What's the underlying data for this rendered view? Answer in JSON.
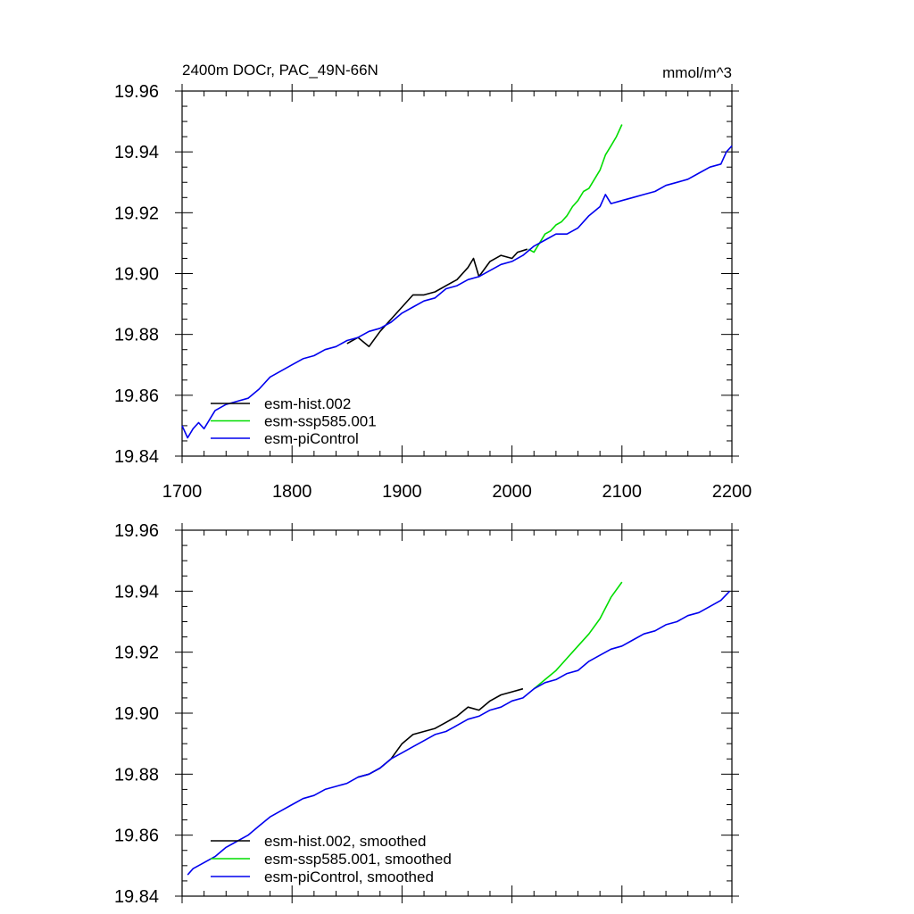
{
  "figure": {
    "title_left": "2400m DOCr, PAC_49N-66N",
    "title_right": "mmol/m^3"
  },
  "chart_data": [
    {
      "type": "line",
      "panel": "top",
      "xlim": [
        1700,
        2200
      ],
      "ylim": [
        19.84,
        19.96
      ],
      "xticks": [
        "1700",
        "1800",
        "1900",
        "2000",
        "2100",
        "2200"
      ],
      "yticks": [
        "19.84",
        "19.86",
        "19.88",
        "19.90",
        "19.92",
        "19.94",
        "19.96"
      ],
      "legend_position": "bottom-left",
      "series": [
        {
          "name": "esm-hist.002",
          "color": "#000000",
          "x": [
            1850,
            1860,
            1870,
            1880,
            1890,
            1900,
            1910,
            1920,
            1930,
            1940,
            1950,
            1960,
            1965,
            1970,
            1980,
            1990,
            2000,
            2005,
            2014
          ],
          "y": [
            19.877,
            19.879,
            19.876,
            19.881,
            19.885,
            19.889,
            19.893,
            19.893,
            19.894,
            19.896,
            19.898,
            19.902,
            19.905,
            19.899,
            19.904,
            19.906,
            19.905,
            19.907,
            19.908
          ]
        },
        {
          "name": "esm-ssp585.001",
          "color": "#00dd00",
          "x": [
            2015,
            2020,
            2025,
            2030,
            2035,
            2040,
            2045,
            2050,
            2055,
            2060,
            2065,
            2070,
            2075,
            2080,
            2085,
            2090,
            2095,
            2100
          ],
          "y": [
            19.908,
            19.907,
            19.91,
            19.913,
            19.914,
            19.916,
            19.917,
            19.919,
            19.922,
            19.924,
            19.927,
            19.928,
            19.931,
            19.934,
            19.939,
            19.942,
            19.945,
            19.949
          ]
        },
        {
          "name": "esm-piControl",
          "color": "#0000ee",
          "x": [
            1700,
            1705,
            1710,
            1715,
            1720,
            1725,
            1730,
            1740,
            1750,
            1760,
            1770,
            1780,
            1790,
            1800,
            1810,
            1820,
            1830,
            1840,
            1850,
            1860,
            1870,
            1880,
            1890,
            1900,
            1910,
            1920,
            1930,
            1940,
            1950,
            1960,
            1970,
            1980,
            1990,
            2000,
            2010,
            2020,
            2030,
            2040,
            2050,
            2060,
            2070,
            2080,
            2085,
            2090,
            2100,
            2110,
            2120,
            2130,
            2140,
            2150,
            2160,
            2170,
            2180,
            2190,
            2195,
            2200
          ],
          "y": [
            19.85,
            19.846,
            19.849,
            19.851,
            19.849,
            19.852,
            19.855,
            19.857,
            19.858,
            19.859,
            19.862,
            19.866,
            19.868,
            19.87,
            19.872,
            19.873,
            19.875,
            19.876,
            19.878,
            19.879,
            19.881,
            19.882,
            19.884,
            19.887,
            19.889,
            19.891,
            19.892,
            19.895,
            19.896,
            19.898,
            19.899,
            19.901,
            19.903,
            19.904,
            19.906,
            19.909,
            19.911,
            19.913,
            19.913,
            19.915,
            19.919,
            19.922,
            19.926,
            19.923,
            19.924,
            19.925,
            19.926,
            19.927,
            19.929,
            19.93,
            19.931,
            19.933,
            19.935,
            19.936,
            19.94,
            19.942
          ]
        }
      ]
    },
    {
      "type": "line",
      "panel": "bottom",
      "xlim": [
        1700,
        2200
      ],
      "ylim": [
        19.84,
        19.96
      ],
      "yticks": [
        "19.84",
        "19.86",
        "19.88",
        "19.90",
        "19.92",
        "19.94",
        "19.96"
      ],
      "legend_position": "bottom-left",
      "series": [
        {
          "name": "esm-hist.002, smoothed",
          "color": "#000000",
          "x": [
            1860,
            1870,
            1880,
            1890,
            1900,
            1910,
            1920,
            1930,
            1940,
            1950,
            1960,
            1970,
            1980,
            1990,
            2000,
            2010
          ],
          "y": [
            19.879,
            19.88,
            19.882,
            19.885,
            19.89,
            19.893,
            19.894,
            19.895,
            19.897,
            19.899,
            19.902,
            19.901,
            19.904,
            19.906,
            19.907,
            19.908
          ]
        },
        {
          "name": "esm-ssp585.001, smoothed",
          "color": "#00dd00",
          "x": [
            2020,
            2030,
            2040,
            2050,
            2060,
            2070,
            2080,
            2090,
            2100
          ],
          "y": [
            19.908,
            19.911,
            19.914,
            19.918,
            19.922,
            19.926,
            19.931,
            19.938,
            19.943
          ]
        },
        {
          "name": "esm-piControl, smoothed",
          "color": "#0000ee",
          "x": [
            1705,
            1710,
            1720,
            1730,
            1740,
            1750,
            1760,
            1770,
            1780,
            1790,
            1800,
            1810,
            1820,
            1830,
            1840,
            1850,
            1860,
            1870,
            1880,
            1890,
            1900,
            1910,
            1920,
            1930,
            1940,
            1950,
            1960,
            1970,
            1980,
            1990,
            2000,
            2010,
            2020,
            2030,
            2040,
            2050,
            2060,
            2070,
            2080,
            2090,
            2100,
            2110,
            2120,
            2130,
            2140,
            2150,
            2160,
            2170,
            2180,
            2190,
            2198
          ],
          "y": [
            19.847,
            19.849,
            19.851,
            19.853,
            19.856,
            19.858,
            19.86,
            19.863,
            19.866,
            19.868,
            19.87,
            19.872,
            19.873,
            19.875,
            19.876,
            19.877,
            19.879,
            19.88,
            19.882,
            19.885,
            19.887,
            19.889,
            19.891,
            19.893,
            19.894,
            19.896,
            19.898,
            19.899,
            19.901,
            19.902,
            19.904,
            19.905,
            19.908,
            19.91,
            19.911,
            19.913,
            19.914,
            19.917,
            19.919,
            19.921,
            19.922,
            19.924,
            19.926,
            19.927,
            19.929,
            19.93,
            19.932,
            19.933,
            19.935,
            19.937,
            19.94
          ]
        }
      ]
    }
  ]
}
